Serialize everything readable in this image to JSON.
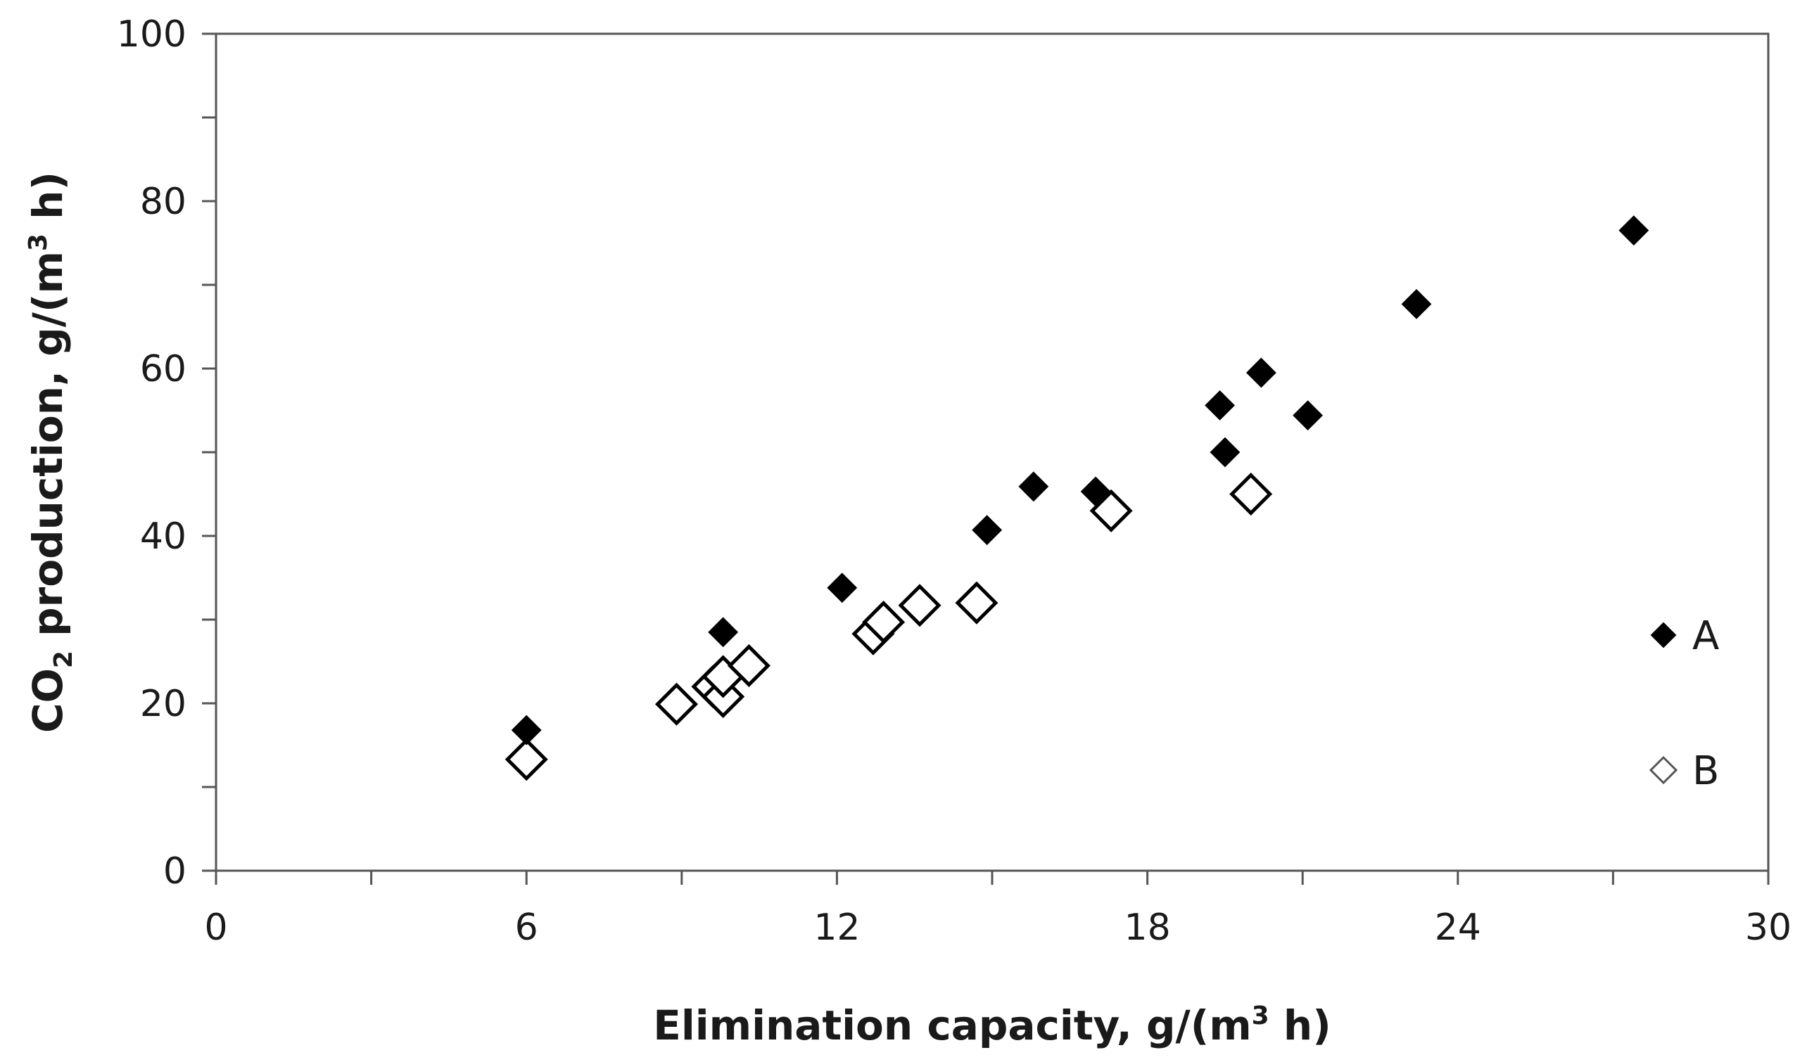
{
  "chart_data": {
    "type": "scatter",
    "title": "",
    "xlabel": {
      "main": "Elimination capacity, g/(m",
      "sup": "3",
      "tail": " h)"
    },
    "ylabel": {
      "pre": "CO",
      "sub": "2",
      "mid": " production, g/(m",
      "sup": "3",
      "tail": " h)"
    },
    "xlim": [
      0,
      30
    ],
    "ylim": [
      0,
      100
    ],
    "xticks_major": [
      0,
      6,
      12,
      18,
      24,
      30
    ],
    "xticks_minor": [
      3,
      9,
      15,
      21,
      27
    ],
    "yticks_major": [
      0,
      20,
      40,
      60,
      80,
      100
    ],
    "yticks_minor": [
      10,
      30,
      50,
      70,
      90
    ],
    "grid": false,
    "legend_position": "right",
    "series": [
      {
        "name": "A",
        "marker": "diamond-filled",
        "color": "#000000",
        "points": [
          [
            6.0,
            16.8
          ],
          [
            9.8,
            28.5
          ],
          [
            12.1,
            33.8
          ],
          [
            14.9,
            40.7
          ],
          [
            15.8,
            45.9
          ],
          [
            17.0,
            45.3
          ],
          [
            19.4,
            55.6
          ],
          [
            19.5,
            50.0
          ],
          [
            20.2,
            59.5
          ],
          [
            21.1,
            54.4
          ],
          [
            23.2,
            67.7
          ],
          [
            27.4,
            76.5
          ]
        ]
      },
      {
        "name": "B",
        "marker": "diamond-open",
        "color": "#000000",
        "points": [
          [
            6.0,
            13.3
          ],
          [
            8.9,
            19.9
          ],
          [
            9.6,
            22.0
          ],
          [
            9.8,
            20.8
          ],
          [
            9.8,
            23.2
          ],
          [
            10.3,
            24.5
          ],
          [
            12.7,
            28.3
          ],
          [
            12.9,
            29.7
          ],
          [
            13.6,
            31.7
          ],
          [
            14.7,
            32.0
          ],
          [
            17.3,
            43.0
          ],
          [
            20.0,
            45.0
          ]
        ]
      }
    ]
  }
}
